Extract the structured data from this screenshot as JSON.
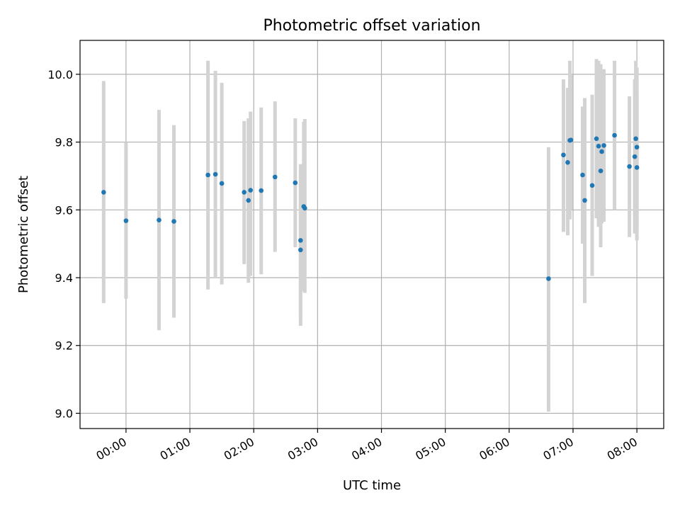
{
  "chart_data": {
    "type": "scatter",
    "title": "Photometric offset variation",
    "xlabel": "UTC time",
    "ylabel": "Photometric offset",
    "x_unit": "hours (UTC)",
    "xlim": [
      -0.72,
      8.42
    ],
    "ylim": [
      8.955,
      10.1
    ],
    "x_ticks": [
      {
        "value": 0,
        "label": "00:00"
      },
      {
        "value": 1,
        "label": "01:00"
      },
      {
        "value": 2,
        "label": "02:00"
      },
      {
        "value": 3,
        "label": "03:00"
      },
      {
        "value": 4,
        "label": "04:00"
      },
      {
        "value": 5,
        "label": "05:00"
      },
      {
        "value": 6,
        "label": "06:00"
      },
      {
        "value": 7,
        "label": "07:00"
      },
      {
        "value": 8,
        "label": "08:00"
      }
    ],
    "y_ticks": [
      {
        "value": 9.0,
        "label": "9.0"
      },
      {
        "value": 9.2,
        "label": "9.2"
      },
      {
        "value": 9.4,
        "label": "9.4"
      },
      {
        "value": 9.6,
        "label": "9.6"
      },
      {
        "value": 9.8,
        "label": "9.8"
      },
      {
        "value": 10.0,
        "label": "10.0"
      }
    ],
    "grid": true,
    "colors": {
      "points": "#1f77b4",
      "errorbars": "#d3d3d3"
    },
    "points": [
      {
        "t": "23:39",
        "y": 9.652,
        "lo": 9.325,
        "hi": 9.98
      },
      {
        "t": "00:00",
        "y": 9.568,
        "lo": 9.338,
        "hi": 9.8
      },
      {
        "t": "00:31",
        "y": 9.57,
        "lo": 9.245,
        "hi": 9.895
      },
      {
        "t": "00:45",
        "y": 9.566,
        "lo": 9.282,
        "hi": 9.85
      },
      {
        "t": "01:17",
        "y": 9.703,
        "lo": 9.365,
        "hi": 10.04
      },
      {
        "t": "01:24",
        "y": 9.705,
        "lo": 9.4,
        "hi": 10.01
      },
      {
        "t": "01:30",
        "y": 9.678,
        "lo": 9.38,
        "hi": 9.975
      },
      {
        "t": "01:51",
        "y": 9.652,
        "lo": 9.44,
        "hi": 9.862
      },
      {
        "t": "01:55",
        "y": 9.628,
        "lo": 9.385,
        "hi": 9.87
      },
      {
        "t": "01:57",
        "y": 9.658,
        "lo": 9.405,
        "hi": 9.89
      },
      {
        "t": "02:07",
        "y": 9.657,
        "lo": 9.41,
        "hi": 9.902
      },
      {
        "t": "02:20",
        "y": 9.697,
        "lo": 9.476,
        "hi": 9.92
      },
      {
        "t": "02:39",
        "y": 9.68,
        "lo": 9.49,
        "hi": 9.87
      },
      {
        "t": "02:44",
        "y": 9.51,
        "lo": 9.285,
        "hi": 9.735
      },
      {
        "t": "02:44",
        "y": 9.482,
        "lo": 9.258,
        "hi": 9.705
      },
      {
        "t": "02:47",
        "y": 9.61,
        "lo": 9.36,
        "hi": 9.86
      },
      {
        "t": "02:48",
        "y": 9.605,
        "lo": 9.355,
        "hi": 9.868
      },
      {
        "t": "06:37",
        "y": 9.397,
        "lo": 9.005,
        "hi": 9.785
      },
      {
        "t": "06:51",
        "y": 9.762,
        "lo": 9.535,
        "hi": 9.985
      },
      {
        "t": "06:55",
        "y": 9.74,
        "lo": 9.525,
        "hi": 9.96
      },
      {
        "t": "06:57",
        "y": 9.805,
        "lo": 9.572,
        "hi": 10.04
      },
      {
        "t": "06:58",
        "y": 9.806,
        "lo": 9.6,
        "hi": 10.0
      },
      {
        "t": "07:09",
        "y": 9.703,
        "lo": 9.5,
        "hi": 9.905
      },
      {
        "t": "07:11",
        "y": 9.628,
        "lo": 9.325,
        "hi": 9.93
      },
      {
        "t": "07:18",
        "y": 9.672,
        "lo": 9.405,
        "hi": 9.94
      },
      {
        "t": "07:22",
        "y": 9.81,
        "lo": 9.575,
        "hi": 10.045
      },
      {
        "t": "07:24",
        "y": 9.788,
        "lo": 9.55,
        "hi": 10.04
      },
      {
        "t": "07:26",
        "y": 9.715,
        "lo": 9.49,
        "hi": 10.03
      },
      {
        "t": "07:27",
        "y": 9.772,
        "lo": 9.56,
        "hi": 9.985
      },
      {
        "t": "07:29",
        "y": 9.79,
        "lo": 9.565,
        "hi": 10.015
      },
      {
        "t": "07:39",
        "y": 9.82,
        "lo": 9.6,
        "hi": 10.04
      },
      {
        "t": "07:53",
        "y": 9.728,
        "lo": 9.52,
        "hi": 9.935
      },
      {
        "t": "07:58",
        "y": 9.757,
        "lo": 9.53,
        "hi": 9.985
      },
      {
        "t": "07:59",
        "y": 9.81,
        "lo": 9.58,
        "hi": 10.04
      },
      {
        "t": "08:00",
        "y": 9.785,
        "lo": 9.55,
        "hi": 10.02
      },
      {
        "t": "08:00",
        "y": 9.725,
        "lo": 9.51,
        "hi": 9.94
      }
    ]
  }
}
